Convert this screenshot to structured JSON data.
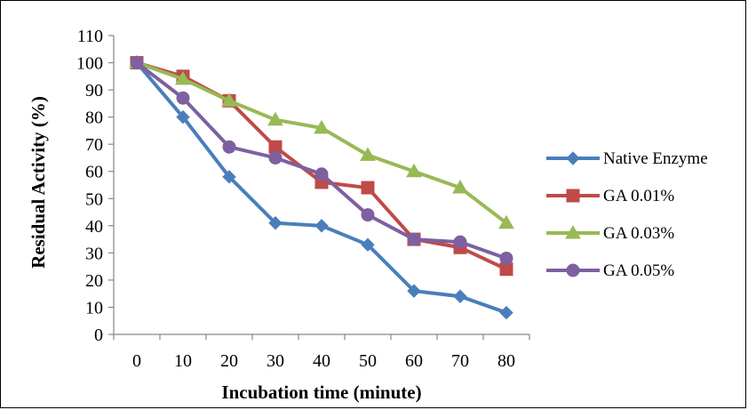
{
  "chart_data": {
    "type": "line",
    "title": "",
    "xlabel": "Incubation time (minute)",
    "ylabel": "Residual Activity (%)",
    "x": [
      0,
      10,
      20,
      30,
      40,
      50,
      60,
      70,
      80
    ],
    "x_tick_labels": [
      "0",
      "10",
      "20",
      "30",
      "40",
      "50",
      "60",
      "70",
      "80"
    ],
    "y_tick_labels": [
      "0",
      "10",
      "20",
      "30",
      "40",
      "50",
      "60",
      "70",
      "80",
      "90",
      "100",
      "110"
    ],
    "ylim": [
      0,
      110
    ],
    "grid": false,
    "legend_position": "right",
    "series": [
      {
        "name": "Native Enzyme",
        "color": "#4a7ebb",
        "marker": "diamond",
        "values": [
          100,
          80,
          58,
          41,
          40,
          33,
          16,
          14,
          8
        ]
      },
      {
        "name": "GA 0.01%",
        "color": "#be4b48",
        "marker": "square",
        "values": [
          100,
          95,
          86,
          69,
          56,
          54,
          35,
          32,
          24
        ]
      },
      {
        "name": "GA 0.03%",
        "color": "#98b954",
        "marker": "triangle",
        "values": [
          100,
          94,
          86,
          79,
          76,
          66,
          60,
          54,
          41
        ]
      },
      {
        "name": "GA 0.05%",
        "color": "#7d60a0",
        "marker": "circle",
        "values": [
          100,
          87,
          69,
          65,
          59,
          44,
          35,
          34,
          28
        ]
      }
    ]
  }
}
